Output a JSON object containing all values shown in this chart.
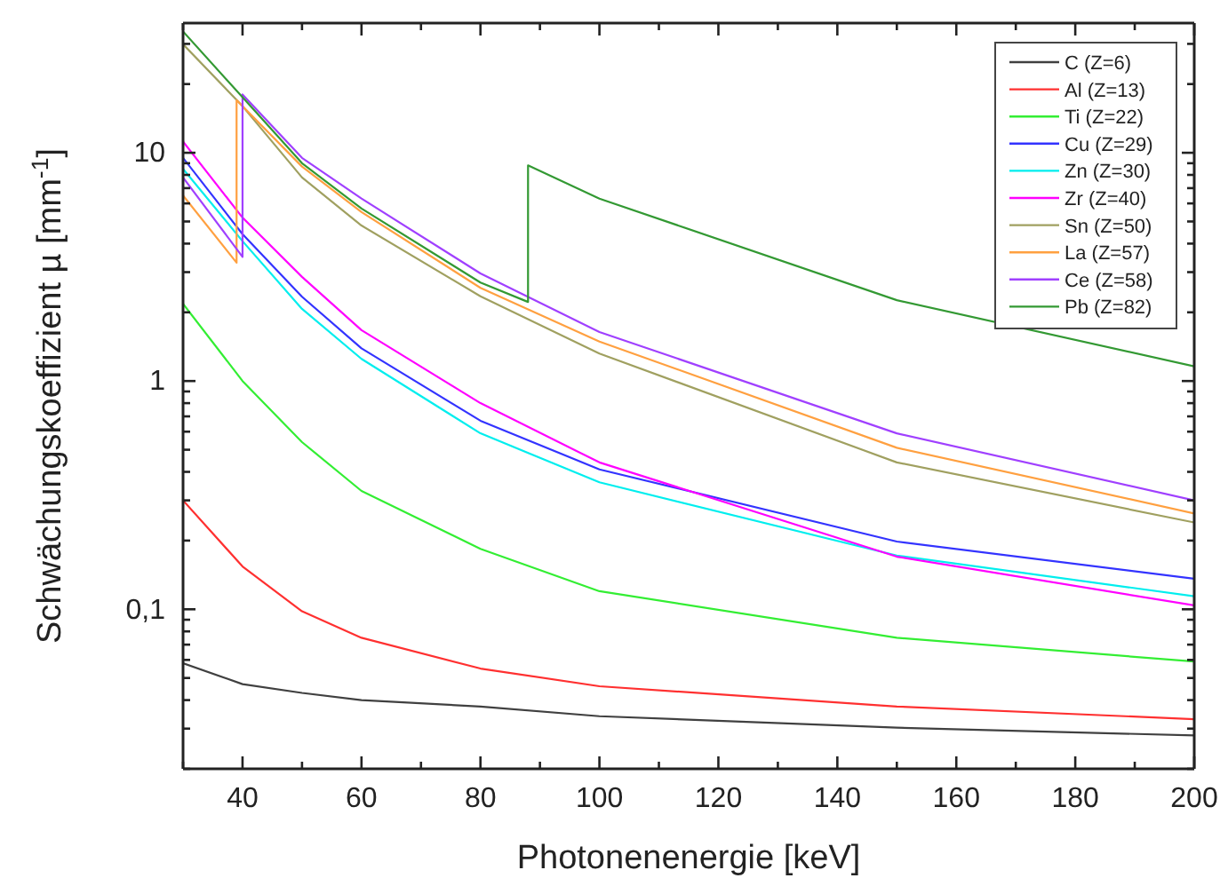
{
  "chart_data": {
    "type": "line",
    "xlabel": "Photonenenergie [keV]",
    "ylabel": "Schwächungskoeffizient µ [mm$^{-1}$]",
    "log": "y",
    "grid": false,
    "legend": "top right",
    "marker": "none",
    "line_style": "solid",
    "xlim": [
      30,
      200
    ],
    "xticks": [
      {
        "value": 30,
        "label": null
      },
      40,
      {
        "value": 50,
        "label": null
      },
      60,
      {
        "value": 70,
        "label": null
      },
      80,
      {
        "value": 90,
        "label": null
      },
      100,
      {
        "value": 110,
        "label": null
      },
      120,
      {
        "value": 130,
        "label": null
      },
      140,
      {
        "value": 150,
        "label": null
      },
      160,
      {
        "value": 170,
        "label": null
      },
      180,
      {
        "value": 190,
        "label": null
      },
      200
    ],
    "ylim": [
      0.02,
      37
    ],
    "yticks": [
      {
        "value": 0.02,
        "label": null
      },
      {
        "value": 0.03,
        "label": null
      },
      {
        "value": 0.04,
        "label": null
      },
      {
        "value": 0.05,
        "label": null
      },
      {
        "value": 0.06,
        "label": null
      },
      {
        "value": 0.07,
        "label": null
      },
      {
        "value": 0.08,
        "label": null
      },
      {
        "value": 0.09,
        "label": null
      },
      {
        "value": 0.1,
        "label": "0,1"
      },
      {
        "value": 0.2,
        "label": null
      },
      {
        "value": 0.3,
        "label": null
      },
      {
        "value": 0.4,
        "label": null
      },
      {
        "value": 0.5,
        "label": null
      },
      {
        "value": 0.6,
        "label": null
      },
      {
        "value": 0.7,
        "label": null
      },
      {
        "value": 0.8,
        "label": null
      },
      {
        "value": 0.9,
        "label": null
      },
      1,
      {
        "value": 2,
        "label": null
      },
      {
        "value": 3,
        "label": null
      },
      {
        "value": 4,
        "label": null
      },
      {
        "value": 5,
        "label": null
      },
      {
        "value": 6,
        "label": null
      },
      {
        "value": 7,
        "label": null
      },
      {
        "value": 8,
        "label": null
      },
      {
        "value": 9,
        "label": null
      },
      10,
      {
        "value": 20,
        "label": null
      },
      {
        "value": 30,
        "label": null
      }
    ],
    "series": [
      {
        "name": "C (Z=6)",
        "color": "#404040",
        "x": [
          30,
          40,
          50,
          60,
          80,
          100,
          150,
          200
        ],
        "values": [
          0.058,
          0.047,
          0.043,
          0.04,
          0.0375,
          0.034,
          0.0303,
          0.028
        ]
      },
      {
        "name": "Al (Z=13)",
        "color": "#ff3030",
        "x": [
          30,
          40,
          50,
          60,
          80,
          100,
          150,
          200
        ],
        "values": [
          0.3,
          0.154,
          0.098,
          0.075,
          0.055,
          0.046,
          0.0375,
          0.033
        ]
      },
      {
        "name": "Ti (Z=22)",
        "color": "#33ee33",
        "x": [
          30,
          40,
          50,
          60,
          80,
          100,
          150,
          200
        ],
        "values": [
          2.18,
          1.0,
          0.54,
          0.33,
          0.184,
          0.12,
          0.075,
          0.059
        ]
      },
      {
        "name": "Cu (Z=29)",
        "color": "#3333ff",
        "x": [
          30,
          40,
          50,
          60,
          80,
          100,
          150,
          200
        ],
        "values": [
          9.5,
          4.4,
          2.34,
          1.39,
          0.67,
          0.41,
          0.198,
          0.136
        ]
      },
      {
        "name": "Zn (Z=30)",
        "color": "#00eeee",
        "x": [
          30,
          40,
          50,
          60,
          80,
          100,
          150,
          200
        ],
        "values": [
          8.5,
          4.1,
          2.07,
          1.25,
          0.59,
          0.36,
          0.172,
          0.114
        ]
      },
      {
        "name": "Zr (Z=40)",
        "color": "#ff00ff",
        "x": [
          30,
          40,
          50,
          60,
          80,
          100,
          150,
          200
        ],
        "values": [
          11.2,
          5.2,
          2.86,
          1.67,
          0.8,
          0.44,
          0.17,
          0.104
        ]
      },
      {
        "name": "Sn (Z=50)",
        "color": "#a0a060",
        "x": [
          30,
          40,
          50,
          60,
          80,
          100,
          150,
          200
        ],
        "values": [
          29.9,
          16,
          7.8,
          4.8,
          2.35,
          1.32,
          0.44,
          0.24
        ]
      },
      {
        "name": "La (Z=57)",
        "color": "#ffa040",
        "x": [
          30,
          39,
          39,
          50,
          60,
          80,
          100,
          150,
          200
        ],
        "values": [
          6.5,
          3.3,
          17,
          8.7,
          5.5,
          2.56,
          1.49,
          0.51,
          0.263
        ]
      },
      {
        "name": "Ce (Z=58)",
        "color": "#a040ff",
        "x": [
          30,
          40,
          40,
          50,
          60,
          80,
          100,
          150,
          200
        ],
        "values": [
          7.8,
          3.5,
          18,
          9.5,
          6.3,
          2.96,
          1.64,
          0.59,
          0.3
        ]
      },
      {
        "name": "Pb (Z=82)",
        "color": "#339933",
        "x": [
          30,
          40,
          50,
          60,
          80,
          88,
          88,
          100,
          150,
          200
        ],
        "values": [
          34,
          17.5,
          9.0,
          5.7,
          2.7,
          2.22,
          8.8,
          6.3,
          2.26,
          1.16
        ]
      }
    ]
  }
}
